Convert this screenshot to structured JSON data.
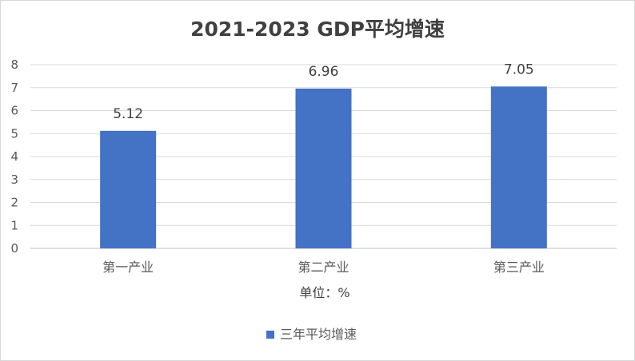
{
  "chart_data": {
    "type": "bar",
    "title": "2021-2023   GDP平均增速",
    "categories": [
      "第一产业",
      "第二产业",
      "第三产业"
    ],
    "series": [
      {
        "name": "三年平均增速",
        "values": [
          5.12,
          6.96,
          7.05
        ],
        "color": "#4472c4"
      }
    ],
    "data_labels": [
      "5.12",
      "6.96",
      "7.05"
    ],
    "y_ticks": [
      "0",
      "1",
      "2",
      "3",
      "4",
      "5",
      "6",
      "7",
      "8"
    ],
    "ylim": [
      0,
      8
    ],
    "unit_label": "单位：%",
    "grid": true,
    "legend_position": "bottom",
    "colors": {
      "bar": "#4472c4",
      "grid": "#d9d9d9",
      "axis": "#bfbfbf"
    }
  }
}
